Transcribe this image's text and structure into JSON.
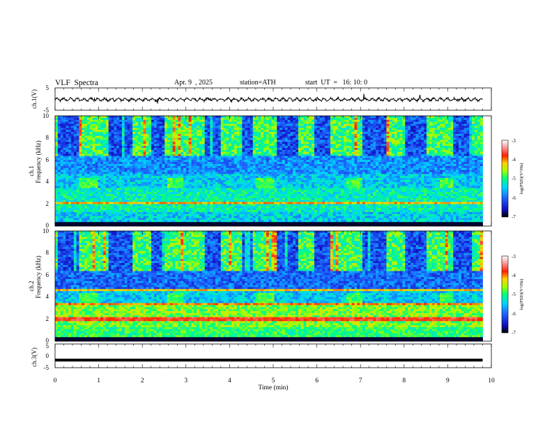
{
  "header": {
    "title": "VLF  Spectra",
    "date": "Apr. 9  , 2025",
    "station": "station=ATH",
    "start_ut": "start  UT  =   16: 10: 0"
  },
  "colors": {
    "waveform": "#000000",
    "axis": "#000000",
    "colormap": [
      "#000000",
      "#1e1ee6",
      "#00c8ff",
      "#00ff96",
      "#b4ff00",
      "#ffa000",
      "#ff0000",
      "#ffffff"
    ]
  },
  "chart_data": [
    {
      "type": "line",
      "panel": "ch1",
      "ylabel": "ch.1(V)",
      "ylim": [
        -5,
        5
      ],
      "yticks": [
        "5",
        "-5"
      ],
      "x_range": [
        0,
        9.8
      ],
      "approx_mean": 0,
      "approx_amplitude": 1
    },
    {
      "type": "heatmap",
      "panel": "ch1-spectrogram",
      "ylabel_lines": [
        "ch.1",
        "Frequency  (kHz)"
      ],
      "ylim": [
        0,
        10
      ],
      "yticks": [
        "0",
        "2",
        "4",
        "6",
        "8",
        "10"
      ],
      "x_range": [
        0,
        9.8
      ],
      "colorbar": {
        "label": "log(PSD)(V²/Hz)",
        "range": [
          -7,
          -3
        ],
        "ticks": [
          "-3",
          "-4",
          "-5",
          "-6",
          "-7"
        ]
      }
    },
    {
      "type": "heatmap",
      "panel": "ch2-spectrogram",
      "ylabel_lines": [
        "ch.2",
        "Frequency  (kHz)"
      ],
      "ylim": [
        0,
        10
      ],
      "yticks": [
        "0",
        "2",
        "4",
        "6",
        "8",
        "10"
      ],
      "x_range": [
        0,
        9.8
      ],
      "colorbar": {
        "label": "log(PSD)(V²/Hz)",
        "range": [
          -7,
          -3
        ],
        "ticks": [
          "-3",
          "-4",
          "-5",
          "-6",
          "-7"
        ]
      }
    },
    {
      "type": "line",
      "panel": "ch3",
      "ylabel": "ch.3(V)",
      "ylim": [
        -5,
        5
      ],
      "yticks": [
        "5",
        "0",
        "-5"
      ],
      "x_range": [
        0,
        9.8
      ],
      "approx_mean": -1.8
    }
  ],
  "x_axis": {
    "label": "Time  (min)",
    "range": [
      0,
      10
    ],
    "ticks": [
      "0",
      "1",
      "2",
      "3",
      "4",
      "5",
      "6",
      "7",
      "8",
      "9",
      "10"
    ]
  }
}
